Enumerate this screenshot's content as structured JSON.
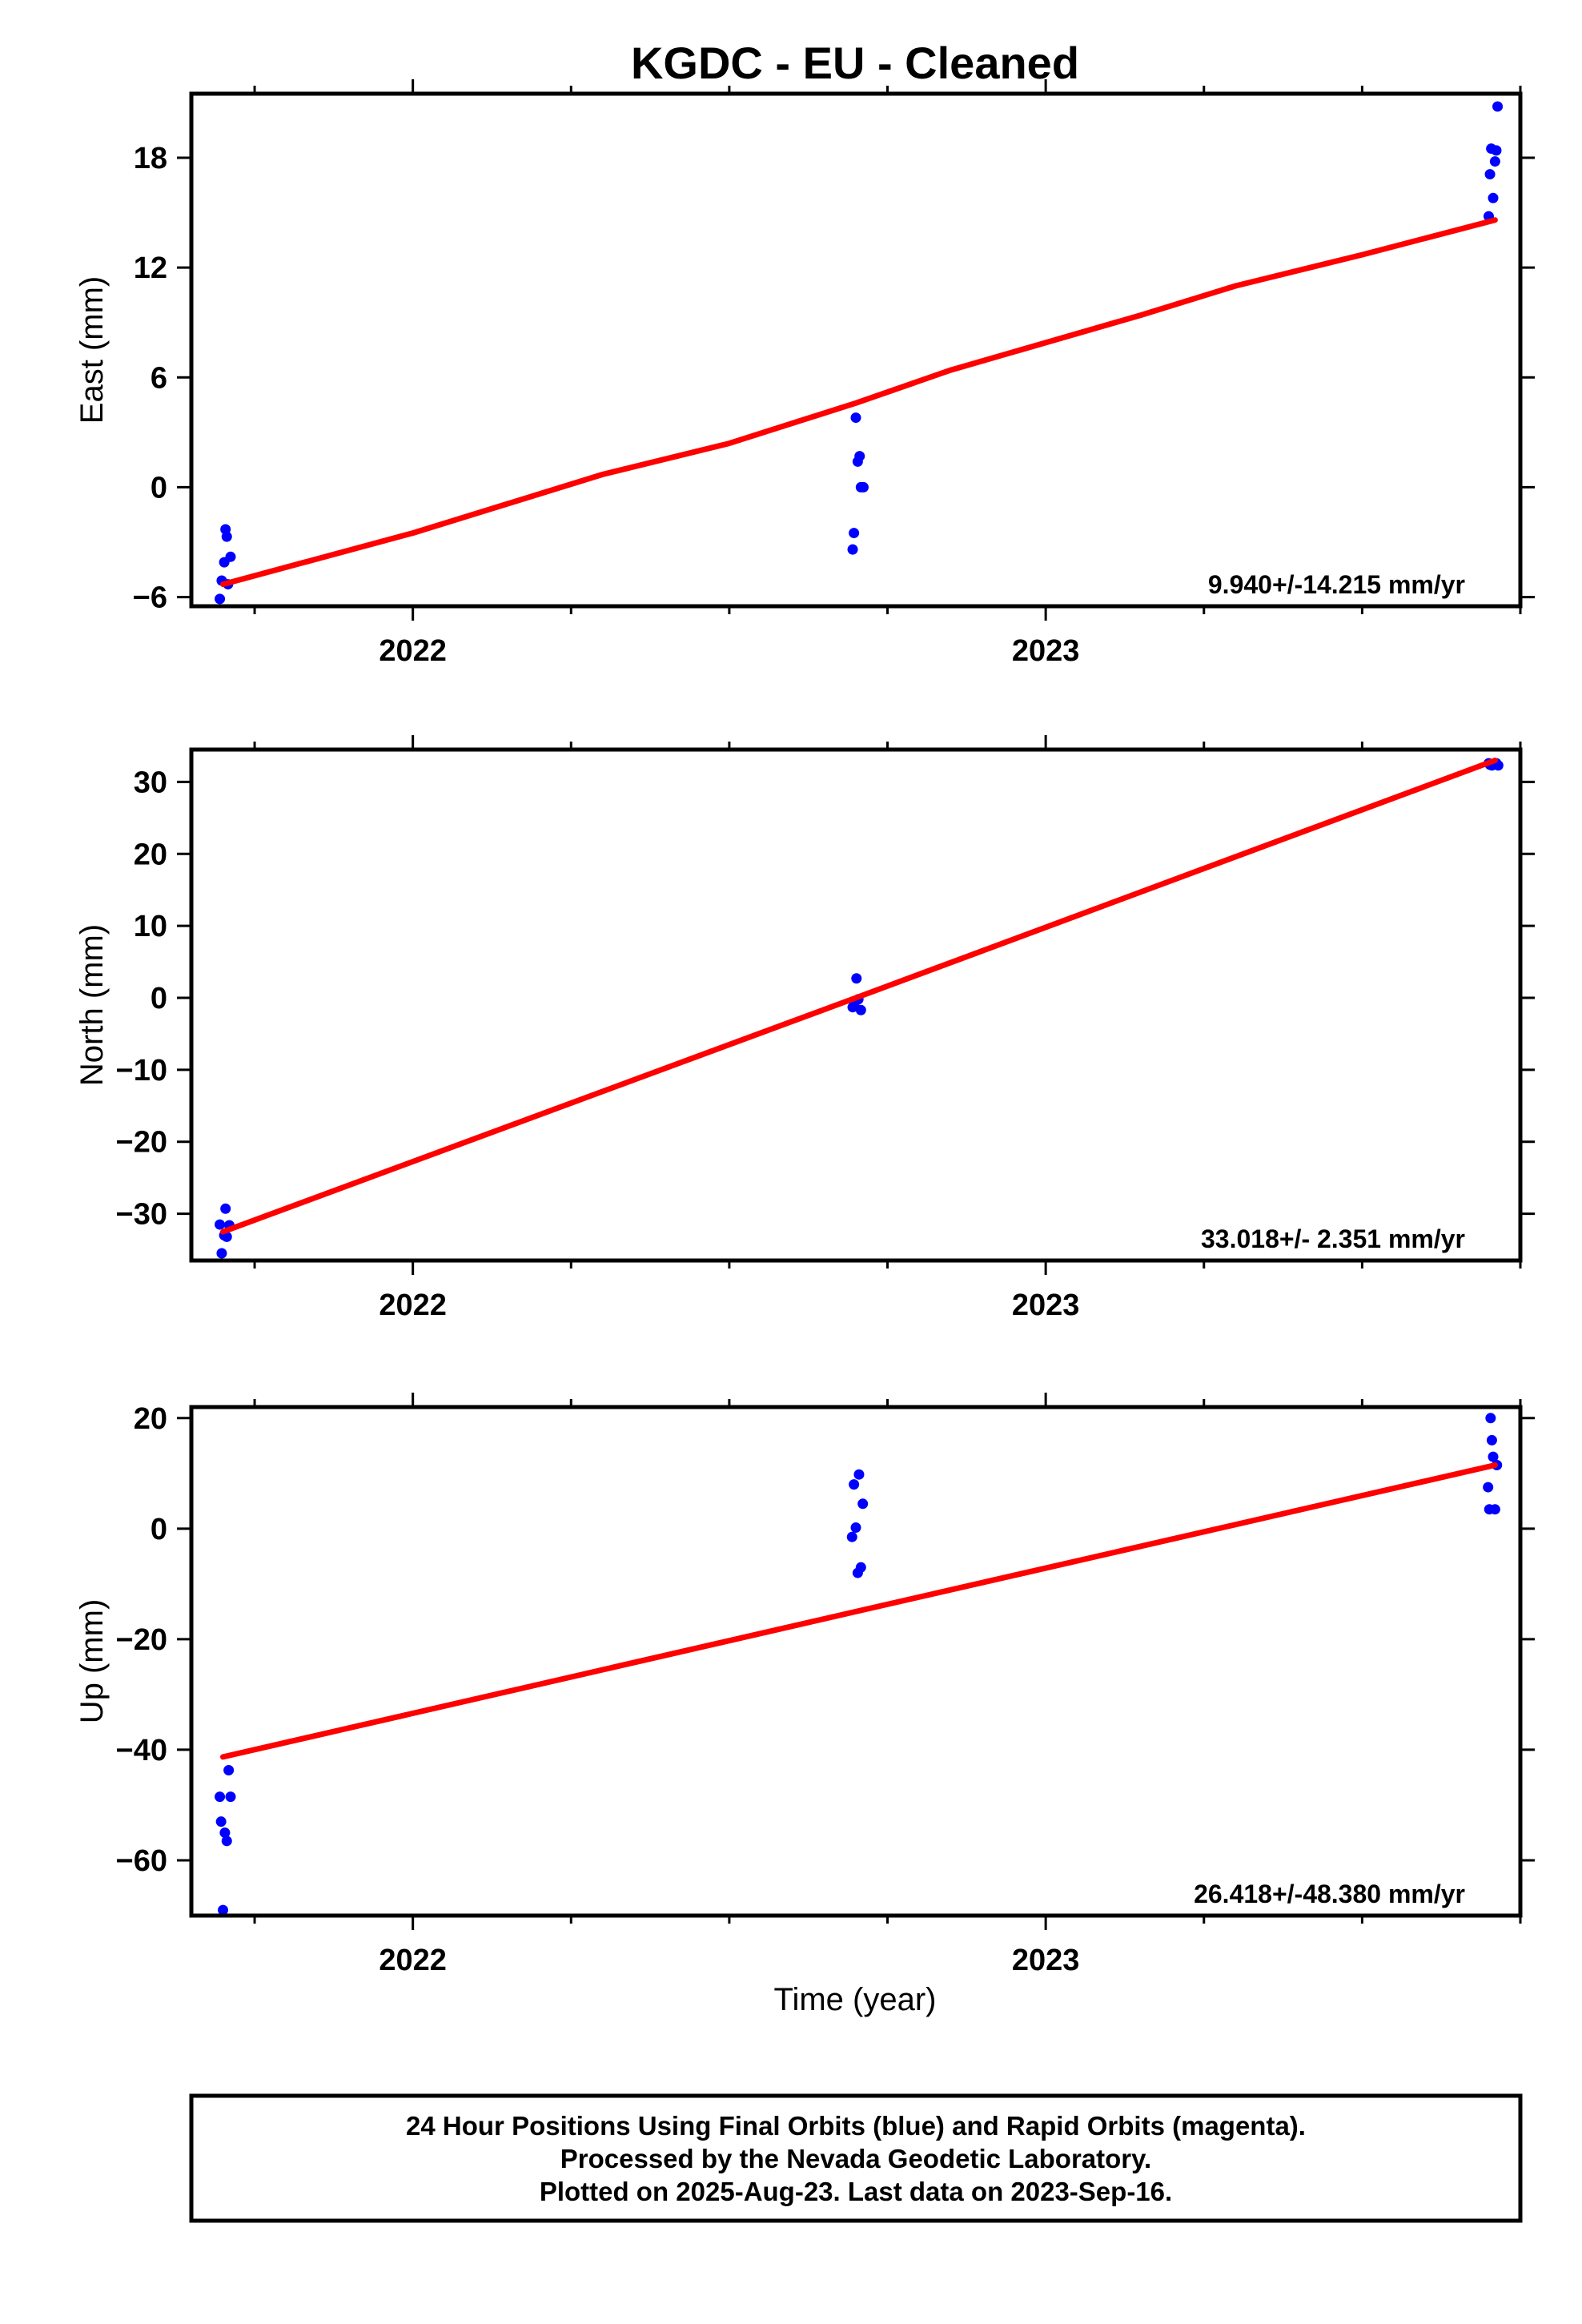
{
  "title": "KGDC  - EU - Cleaned",
  "xlabel": "Time (year)",
  "footer": {
    "line1": "24 Hour Positions Using Final Orbits (blue) and Rapid Orbits (magenta).",
    "line2": "Processed by the Nevada Geodetic Laboratory.",
    "line3": "Plotted on 2025-Aug-23. Last data on 2023-Sep-16."
  },
  "colors": {
    "points": "#0000ff",
    "fit": "#ff0000",
    "frame": "#000000"
  },
  "chart_data": [
    {
      "type": "scatter",
      "ylabel": "East (mm)",
      "rate_text": "9.940+/-14.215 mm/yr",
      "xlim": [
        2021.65,
        2023.75
      ],
      "ylim": [
        -6.5,
        21.5
      ],
      "xticks": [
        2022,
        2023
      ],
      "yticks": [
        -6,
        0,
        6,
        12,
        18
      ],
      "ytick_labels": [
        "−6",
        "0",
        "6",
        "12",
        "18"
      ],
      "grid": false,
      "points": [
        [
          2021.695,
          -6.1
        ],
        [
          2021.698,
          -5.1
        ],
        [
          2021.702,
          -4.1
        ],
        [
          2021.704,
          -2.3
        ],
        [
          2021.706,
          -2.7
        ],
        [
          2021.708,
          -5.3
        ],
        [
          2021.712,
          -3.8
        ],
        [
          2022.695,
          -3.4
        ],
        [
          2022.697,
          -2.5
        ],
        [
          2022.7,
          3.8
        ],
        [
          2022.703,
          1.4
        ],
        [
          2022.706,
          1.7
        ],
        [
          2022.708,
          0.0
        ],
        [
          2022.712,
          0.0
        ],
        [
          2023.7,
          14.8
        ],
        [
          2023.702,
          17.1
        ],
        [
          2023.704,
          18.5
        ],
        [
          2023.707,
          15.8
        ],
        [
          2023.71,
          17.8
        ],
        [
          2023.712,
          18.4
        ],
        [
          2023.714,
          20.8
        ]
      ],
      "fit": [
        [
          2021.7,
          -5.3
        ],
        [
          2021.85,
          -3.9
        ],
        [
          2022.0,
          -2.5
        ],
        [
          2022.15,
          -0.9
        ],
        [
          2022.3,
          0.7
        ],
        [
          2022.5,
          2.4
        ],
        [
          2022.7,
          4.6
        ],
        [
          2022.85,
          6.4
        ],
        [
          2023.0,
          7.9
        ],
        [
          2023.15,
          9.4
        ],
        [
          2023.3,
          11.0
        ],
        [
          2023.5,
          12.7
        ],
        [
          2023.71,
          14.6
        ]
      ]
    },
    {
      "type": "scatter",
      "ylabel": "North (mm)",
      "rate_text": "33.018+/- 2.351 mm/yr",
      "xlim": [
        2021.65,
        2023.75
      ],
      "ylim": [
        -36.5,
        34.5
      ],
      "xticks": [
        2022,
        2023
      ],
      "yticks": [
        -30,
        -20,
        -10,
        0,
        10,
        20,
        30
      ],
      "ytick_labels": [
        "−30",
        "−20",
        "−10",
        "0",
        "10",
        "20",
        "30"
      ],
      "grid": false,
      "points": [
        [
          2021.695,
          -31.5
        ],
        [
          2021.698,
          -35.5
        ],
        [
          2021.702,
          -33.0
        ],
        [
          2021.704,
          -29.3
        ],
        [
          2021.706,
          -33.2
        ],
        [
          2021.71,
          -31.6
        ],
        [
          2022.695,
          -1.3
        ],
        [
          2022.698,
          -0.7
        ],
        [
          2022.701,
          2.7
        ],
        [
          2022.704,
          -0.2
        ],
        [
          2022.708,
          -1.7
        ],
        [
          2023.7,
          32.6
        ],
        [
          2023.702,
          32.4
        ],
        [
          2023.705,
          32.3
        ],
        [
          2023.708,
          32.5
        ],
        [
          2023.712,
          32.6
        ],
        [
          2023.715,
          32.3
        ]
      ],
      "fit": [
        [
          2021.7,
          -32.5
        ],
        [
          2022.7,
          0.0
        ],
        [
          2023.71,
          33.0
        ]
      ]
    },
    {
      "type": "scatter",
      "ylabel": "Up (mm)",
      "rate_text": "26.418+/-48.380 mm/yr",
      "xlim": [
        2021.65,
        2023.75
      ],
      "ylim": [
        -70,
        22
      ],
      "xticks": [
        2022,
        2023
      ],
      "yticks": [
        -60,
        -40,
        -20,
        0,
        20
      ],
      "ytick_labels": [
        "−60",
        "−40",
        "−20",
        "0",
        "20"
      ],
      "grid": false,
      "points": [
        [
          2021.695,
          -48.5
        ],
        [
          2021.697,
          -53.0
        ],
        [
          2021.7,
          -69.0
        ],
        [
          2021.703,
          -55.0
        ],
        [
          2021.706,
          -56.5
        ],
        [
          2021.709,
          -43.7
        ],
        [
          2021.712,
          -48.5
        ],
        [
          2022.694,
          -1.5
        ],
        [
          2022.697,
          8.0
        ],
        [
          2022.7,
          0.2
        ],
        [
          2022.703,
          -8.0
        ],
        [
          2022.705,
          9.8
        ],
        [
          2022.708,
          -7.0
        ],
        [
          2022.711,
          4.5
        ],
        [
          2023.699,
          7.5
        ],
        [
          2023.701,
          3.5
        ],
        [
          2023.703,
          20.0
        ],
        [
          2023.705,
          16.0
        ],
        [
          2023.707,
          13.0
        ],
        [
          2023.71,
          3.5
        ],
        [
          2023.713,
          11.5
        ]
      ],
      "fit": [
        [
          2021.7,
          -41.3
        ],
        [
          2022.7,
          -15.0
        ],
        [
          2023.71,
          11.5
        ]
      ]
    }
  ]
}
